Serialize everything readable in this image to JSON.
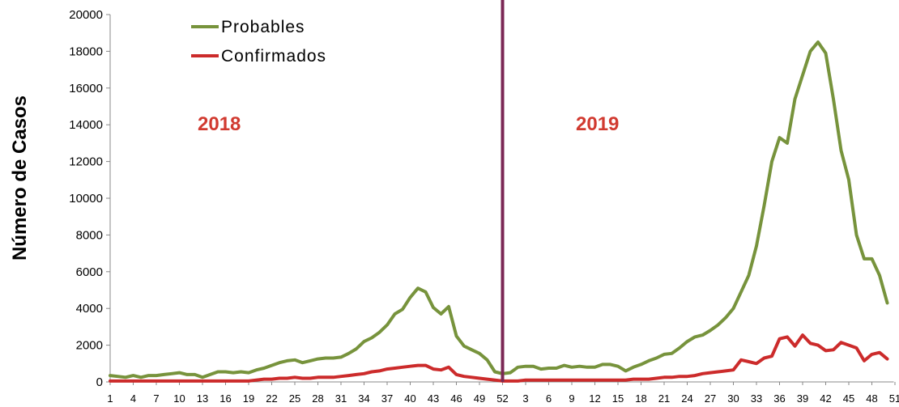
{
  "chart_data": {
    "type": "line",
    "ylabel": "Número de Casos",
    "xlabel": "",
    "ylim": [
      0,
      20000
    ],
    "yticks": [
      "0",
      "2000",
      "4000",
      "6000",
      "8000",
      "10000",
      "12000",
      "14000",
      "16000",
      "18000",
      "20000"
    ],
    "x_tick_labels": [
      "1",
      "4",
      "7",
      "10",
      "13",
      "16",
      "19",
      "22",
      "25",
      "28",
      "31",
      "34",
      "37",
      "40",
      "43",
      "46",
      "49",
      "52",
      "3",
      "6",
      "9",
      "12",
      "15",
      "18",
      "21",
      "24",
      "27",
      "30",
      "33",
      "36",
      "39",
      "42",
      "45",
      "48",
      "51"
    ],
    "year_labels": [
      "2018",
      "2019"
    ],
    "divider_after_index": 51,
    "legend_position": "top-left",
    "series": [
      {
        "name": "Probables",
        "color": "#77933c",
        "values": [
          350,
          300,
          250,
          350,
          250,
          350,
          350,
          400,
          450,
          500,
          400,
          400,
          250,
          400,
          550,
          550,
          500,
          550,
          500,
          650,
          750,
          900,
          1050,
          1150,
          1200,
          1050,
          1150,
          1250,
          1300,
          1300,
          1350,
          1550,
          1800,
          2200,
          2400,
          2700,
          3100,
          3700,
          3950,
          4600,
          5100,
          4900,
          4050,
          3700,
          4100,
          2500,
          1950,
          1750,
          1550,
          1200,
          550,
          450,
          500,
          800,
          850,
          850,
          700,
          750,
          750,
          900,
          800,
          850,
          800,
          800,
          950,
          950,
          850,
          600,
          800,
          950,
          1150,
          1300,
          1500,
          1550,
          1850,
          2200,
          2450,
          2550,
          2800,
          3100,
          3500,
          4000,
          4900,
          5800,
          7400,
          9600,
          12000,
          13300,
          13000,
          15400,
          16700,
          18000,
          18500,
          17900,
          15400,
          12600,
          11000,
          8000,
          6700,
          6700,
          5800,
          4300
        ]
      },
      {
        "name": "Confirmados",
        "color": "#cc2b2b",
        "values": [
          50,
          50,
          50,
          50,
          50,
          50,
          50,
          50,
          50,
          50,
          50,
          50,
          50,
          50,
          50,
          50,
          50,
          50,
          50,
          100,
          150,
          150,
          200,
          200,
          250,
          200,
          200,
          250,
          250,
          250,
          300,
          350,
          400,
          450,
          550,
          600,
          700,
          750,
          800,
          850,
          900,
          900,
          700,
          650,
          800,
          400,
          300,
          250,
          200,
          150,
          100,
          50,
          50,
          50,
          100,
          100,
          100,
          100,
          100,
          100,
          100,
          100,
          100,
          100,
          100,
          100,
          100,
          100,
          150,
          150,
          150,
          200,
          250,
          250,
          300,
          300,
          350,
          450,
          500,
          550,
          600,
          650,
          1200,
          1100,
          1000,
          1300,
          1400,
          2350,
          2450,
          1950,
          2550,
          2100,
          2000,
          1700,
          1750,
          2150,
          2000,
          1850,
          1150,
          1500,
          1600,
          1250
        ]
      }
    ]
  }
}
